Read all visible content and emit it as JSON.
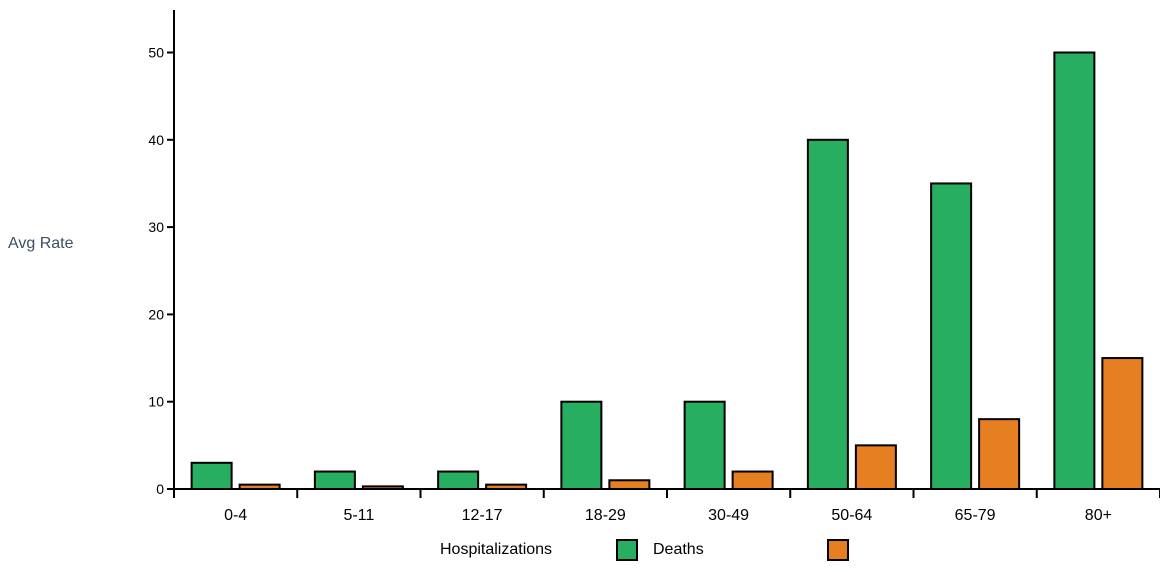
{
  "chart_data": {
    "type": "bar",
    "ylabel": "Avg Rate",
    "xlabel": "",
    "ylim": [
      0,
      55
    ],
    "yticks": [
      0,
      10,
      20,
      30,
      40,
      50
    ],
    "grid": false,
    "legend_position": "bottom",
    "categories": [
      "0-4",
      "5-11",
      "12-17",
      "18-29",
      "30-49",
      "50-64",
      "65-79",
      "80+"
    ],
    "series": [
      {
        "name": "Deaths",
        "color": "#27ae60",
        "values": [
          3,
          2,
          2,
          10,
          10,
          40,
          35,
          50
        ]
      },
      {
        "name": "",
        "color": "#e67e22",
        "values": [
          0.5,
          0.3,
          0.5,
          1,
          2,
          5,
          8,
          15
        ]
      }
    ],
    "legend": {
      "title": "Hospitalizations",
      "entries": [
        {
          "label": "Deaths",
          "color": "#27ae60"
        },
        {
          "label": "",
          "color": "#e67e22"
        }
      ]
    }
  }
}
